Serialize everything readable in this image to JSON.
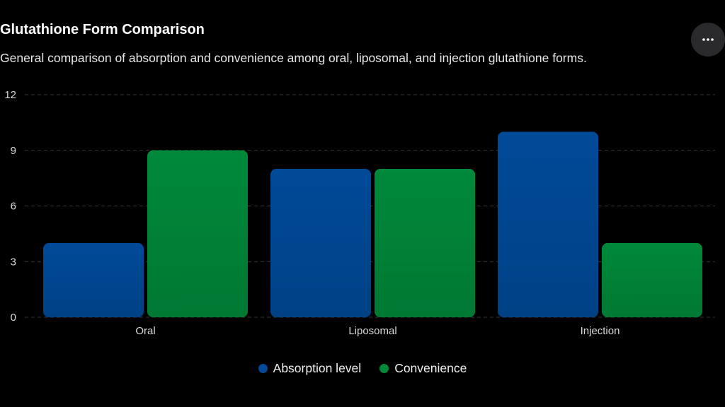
{
  "header": {
    "title": "Glutathione Form Comparison",
    "subtitle": "General comparison of absorption and convenience among oral, liposomal, and injection glutathione forms.",
    "menu_icon": "more-horizontal-icon"
  },
  "colors": {
    "background": "#000000",
    "absorption": "#004a98",
    "convenience": "#00893a",
    "grid": "#3a3a3a"
  },
  "chart_data": {
    "type": "bar",
    "title": "Glutathione Form Comparison",
    "subtitle": "General comparison of absorption and convenience among oral, liposomal, and injection glutathione forms.",
    "categories": [
      "Oral",
      "Liposomal",
      "Injection"
    ],
    "series": [
      {
        "name": "Absorption level",
        "values": [
          4,
          8,
          10
        ],
        "color": "#004a98"
      },
      {
        "name": "Convenience",
        "values": [
          9,
          8,
          4
        ],
        "color": "#00893a"
      }
    ],
    "ylim": [
      0,
      12
    ],
    "yticks": [
      "0",
      "3",
      "6",
      "9",
      "12"
    ],
    "xlabel": "",
    "ylabel": "",
    "grid": true,
    "legend_position": "bottom"
  }
}
